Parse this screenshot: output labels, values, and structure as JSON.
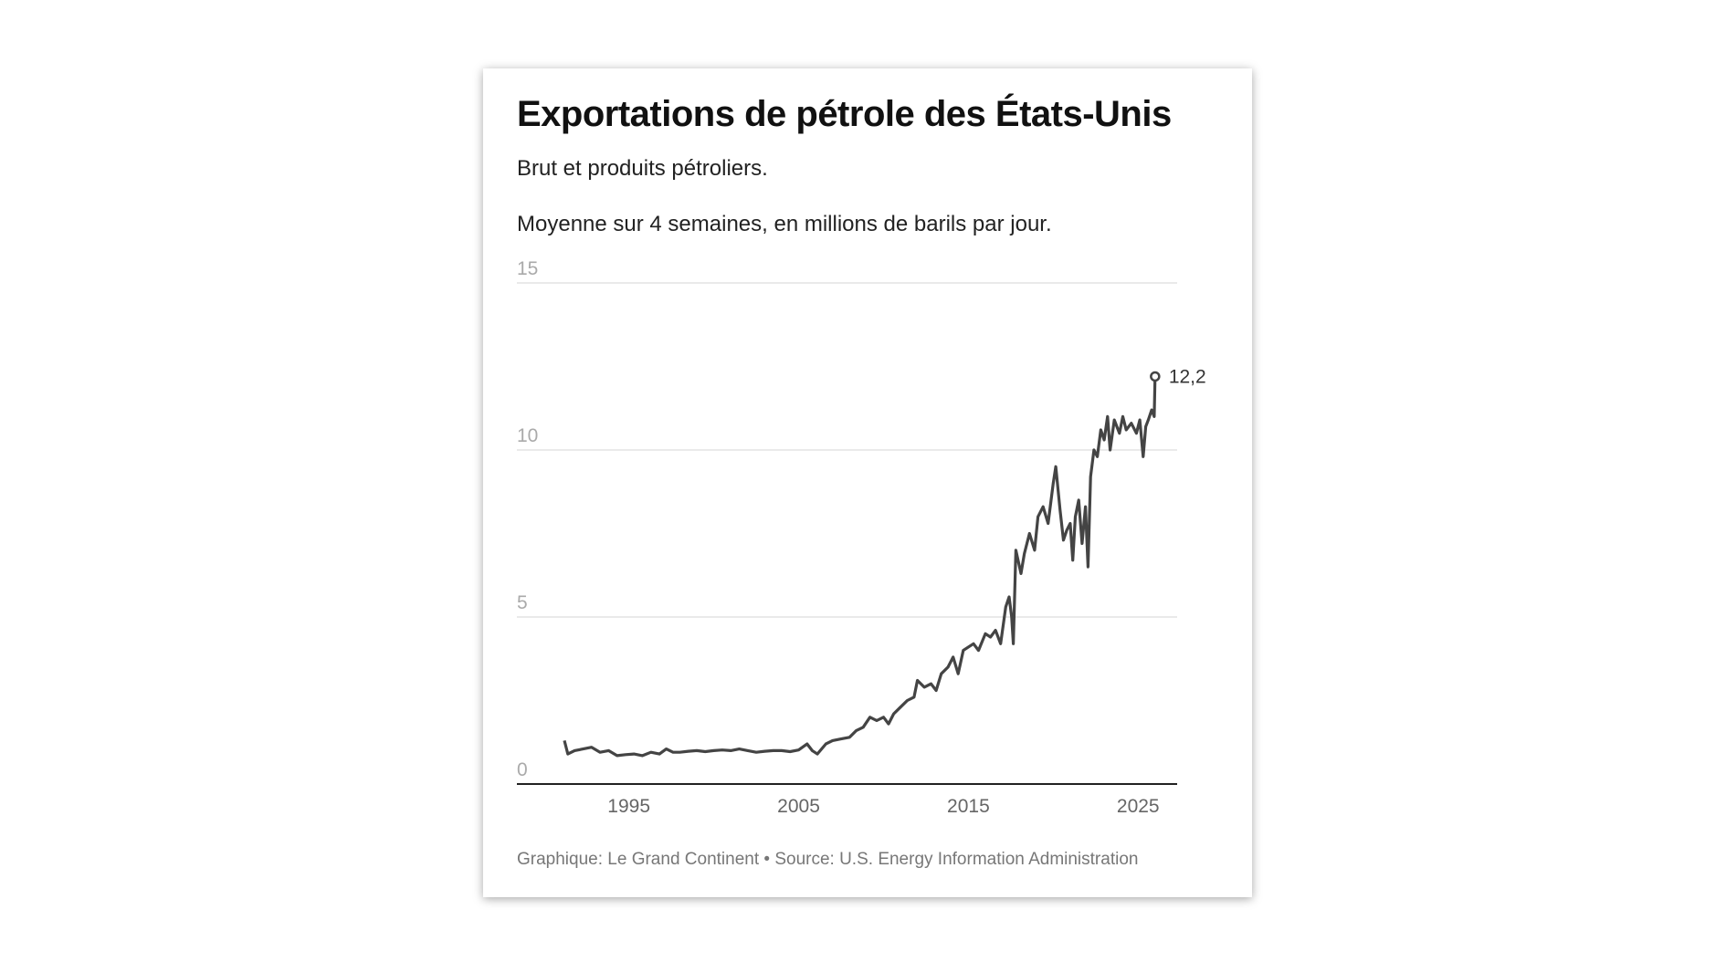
{
  "chart_data": {
    "type": "line",
    "title": "Exportations de pétrole des États-Unis",
    "subtitle": "Brut et produits pétroliers.",
    "note": "Moyenne sur 4 semaines, en millions de barils par jour.",
    "xlabel": "",
    "ylabel": "",
    "xlim": [
      1988.4,
      2027.3
    ],
    "ylim": [
      0,
      15
    ],
    "grid": true,
    "y_ticks": [
      {
        "value": 0,
        "label": "0"
      },
      {
        "value": 5,
        "label": "5"
      },
      {
        "value": 10,
        "label": "10"
      },
      {
        "value": 15,
        "label": "15"
      }
    ],
    "x_ticks": [
      {
        "value": 1995,
        "label": "1995"
      },
      {
        "value": 2005,
        "label": "2005"
      },
      {
        "value": 2015,
        "label": "2015"
      },
      {
        "value": 2025,
        "label": "2025"
      }
    ],
    "series": [
      {
        "name": "Exportations",
        "color": "#444444",
        "x": [
          1991.2,
          1991.4,
          1991.8,
          1992.3,
          1992.8,
          1993.3,
          1993.8,
          1994.3,
          1994.8,
          1995.3,
          1995.8,
          1996.3,
          1996.8,
          1997.2,
          1997.6,
          1998,
          1998.5,
          1999,
          1999.5,
          2000,
          2000.5,
          2001,
          2001.5,
          2002,
          2002.5,
          2003,
          2003.5,
          2004,
          2004.5,
          2005,
          2005.5,
          2005.8,
          2006.1,
          2006.6,
          2007,
          2007.5,
          2008,
          2008.4,
          2008.8,
          2009.2,
          2009.6,
          2010,
          2010.3,
          2010.6,
          2011,
          2011.4,
          2011.8,
          2012,
          2012.4,
          2012.8,
          2013.1,
          2013.4,
          2013.8,
          2014.1,
          2014.4,
          2014.7,
          2015,
          2015.3,
          2015.6,
          2016,
          2016.3,
          2016.6,
          2016.9,
          2017.2,
          2017.4,
          2017.55,
          2017.65,
          2017.8,
          2018.1,
          2018.3,
          2018.6,
          2018.9,
          2019.1,
          2019.4,
          2019.7,
          2020,
          2020.15,
          2020.4,
          2020.6,
          2020.8,
          2021,
          2021.15,
          2021.3,
          2021.5,
          2021.7,
          2021.9,
          2022.05,
          2022.2,
          2022.4,
          2022.6,
          2022.8,
          2023,
          2023.2,
          2023.35,
          2023.6,
          2023.9,
          2024.1,
          2024.3,
          2024.6,
          2024.9,
          2025.1,
          2025.3,
          2025.45,
          2025.6,
          2025.8,
          2025.95,
          2026.0
        ],
        "values": [
          1.3,
          0.9,
          1.0,
          1.05,
          1.1,
          0.95,
          1.0,
          0.85,
          0.88,
          0.9,
          0.85,
          0.95,
          0.9,
          1.05,
          0.95,
          0.95,
          0.98,
          1.0,
          0.97,
          1.0,
          1.02,
          1.0,
          1.05,
          1.0,
          0.95,
          0.98,
          1.0,
          1.0,
          0.97,
          1.02,
          1.2,
          1.0,
          0.9,
          1.2,
          1.3,
          1.35,
          1.4,
          1.6,
          1.7,
          2.0,
          1.9,
          2.0,
          1.8,
          2.1,
          2.3,
          2.5,
          2.6,
          3.1,
          2.9,
          3.0,
          2.8,
          3.3,
          3.5,
          3.8,
          3.3,
          4.0,
          4.1,
          4.2,
          4.0,
          4.5,
          4.4,
          4.6,
          4.2,
          5.3,
          5.6,
          5.0,
          4.2,
          7.0,
          6.3,
          6.9,
          7.5,
          7.0,
          8.0,
          8.3,
          7.8,
          9.0,
          9.5,
          8.2,
          7.3,
          7.6,
          7.8,
          6.7,
          8.0,
          8.5,
          7.2,
          8.3,
          6.5,
          9.2,
          10.0,
          9.8,
          10.6,
          10.3,
          11.0,
          10.0,
          10.9,
          10.5,
          11.0,
          10.6,
          10.8,
          10.5,
          10.9,
          9.8,
          10.7,
          10.9,
          11.2,
          11.0,
          12.2
        ]
      }
    ],
    "annotations": [
      {
        "x": 2026.0,
        "y": 12.2,
        "label": "12,2"
      }
    ],
    "source": "Graphique: Le Grand Continent • Source: U.S. Energy Information Administration"
  }
}
